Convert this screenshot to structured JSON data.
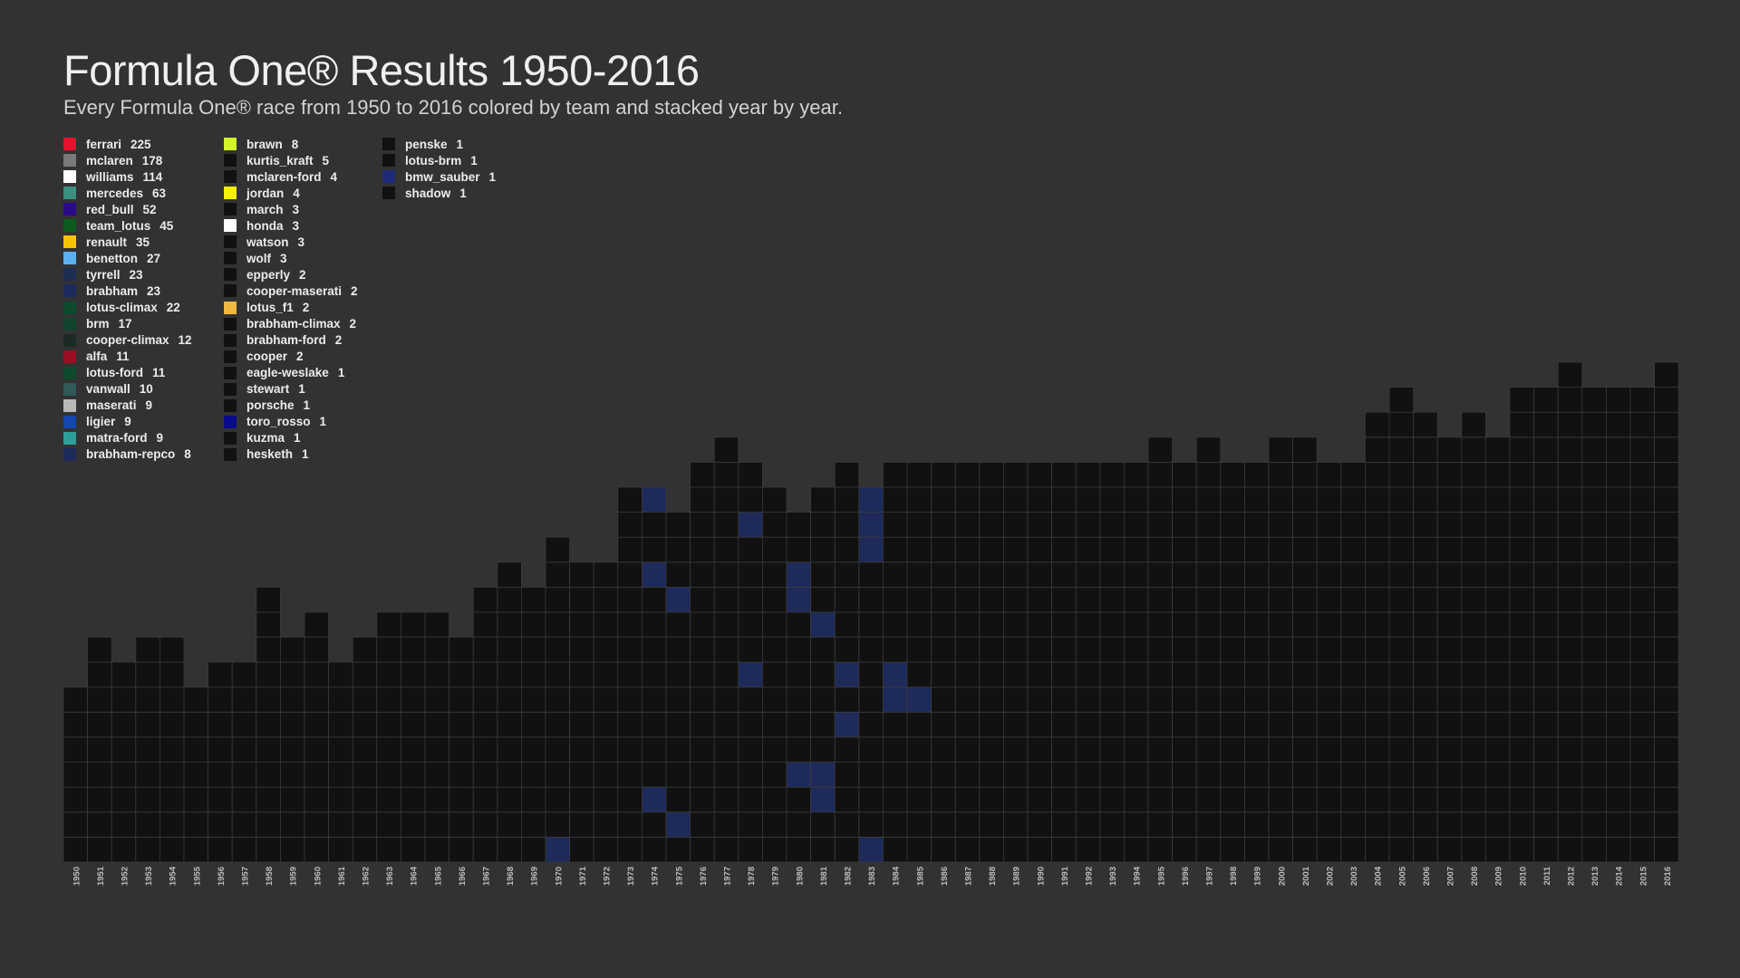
{
  "title": "Formula One® Results 1950-2016",
  "subtitle": "Every Formula One® race from 1950 to 2016 colored by team and stacked year by year.",
  "legend": [
    [
      {
        "team": "ferrari",
        "count": "225",
        "color": "#e8112d"
      },
      {
        "team": "mclaren",
        "count": "178",
        "color": "#7a7a7a"
      },
      {
        "team": "williams",
        "count": "114",
        "color": "#ffffff"
      },
      {
        "team": "mercedes",
        "count": "63",
        "color": "#3a8f80"
      },
      {
        "team": "red_bull",
        "count": "52",
        "color": "#2b0a8a"
      },
      {
        "team": "team_lotus",
        "count": "45",
        "color": "#0b5c1c"
      },
      {
        "team": "renault",
        "count": "35",
        "color": "#f5c400"
      },
      {
        "team": "benetton",
        "count": "27",
        "color": "#5cb0f0"
      },
      {
        "team": "tyrrell",
        "count": "23",
        "color": "#1e2e52"
      },
      {
        "team": "brabham",
        "count": "23",
        "color": "#1c2a5c"
      },
      {
        "team": "lotus-climax",
        "count": "22",
        "color": "#0d4a2e"
      },
      {
        "team": "brm",
        "count": "17",
        "color": "#12442e"
      },
      {
        "team": "cooper-climax",
        "count": "12",
        "color": "#1c2a24"
      },
      {
        "team": "alfa",
        "count": "11",
        "color": "#9a0f24"
      },
      {
        "team": "lotus-ford",
        "count": "11",
        "color": "#0f4a2c"
      },
      {
        "team": "vanwall",
        "count": "10",
        "color": "#2e5a58"
      },
      {
        "team": "maserati",
        "count": "9",
        "color": "#b8b8b8"
      },
      {
        "team": "ligier",
        "count": "9",
        "color": "#1446b0"
      },
      {
        "team": "matra-ford",
        "count": "9",
        "color": "#2e9e9a"
      },
      {
        "team": "brabham-repco",
        "count": "8",
        "color": "#1e2a5a"
      }
    ],
    [
      {
        "team": "brawn",
        "count": "8",
        "color": "#d4f52a"
      },
      {
        "team": "kurtis_kraft",
        "count": "5",
        "color": "#111111"
      },
      {
        "team": "mclaren-ford",
        "count": "4",
        "color": "#111111"
      },
      {
        "team": "jordan",
        "count": "4",
        "color": "#f5f000"
      },
      {
        "team": "march",
        "count": "3",
        "color": "#111111"
      },
      {
        "team": "honda",
        "count": "3",
        "color": "#ffffff"
      },
      {
        "team": "watson",
        "count": "3",
        "color": "#111111"
      },
      {
        "team": "wolf",
        "count": "3",
        "color": "#111111"
      },
      {
        "team": "epperly",
        "count": "2",
        "color": "#111111"
      },
      {
        "team": "cooper-maserati",
        "count": "2",
        "color": "#111111"
      },
      {
        "team": "lotus_f1",
        "count": "2",
        "color": "#f0b840"
      },
      {
        "team": "brabham-climax",
        "count": "2",
        "color": "#111111"
      },
      {
        "team": "brabham-ford",
        "count": "2",
        "color": "#111111"
      },
      {
        "team": "cooper",
        "count": "2",
        "color": "#111111"
      },
      {
        "team": "eagle-weslake",
        "count": "1",
        "color": "#111111"
      },
      {
        "team": "stewart",
        "count": "1",
        "color": "#111111"
      },
      {
        "team": "porsche",
        "count": "1",
        "color": "#111111"
      },
      {
        "team": "toro_rosso",
        "count": "1",
        "color": "#0a0a8c"
      },
      {
        "team": "kuzma",
        "count": "1",
        "color": "#111111"
      },
      {
        "team": "hesketh",
        "count": "1",
        "color": "#111111"
      }
    ],
    [
      {
        "team": "penske",
        "count": "1",
        "color": "#111111"
      },
      {
        "team": "lotus-brm",
        "count": "1",
        "color": "#111111"
      },
      {
        "team": "bmw_sauber",
        "count": "1",
        "color": "#1e2a78"
      },
      {
        "team": "shadow",
        "count": "1",
        "color": "#111111"
      }
    ]
  ],
  "chart_data": {
    "type": "heatmap",
    "x_tick_labels": [
      "1950",
      "1951",
      "1952",
      "1953",
      "1954",
      "1955",
      "1956",
      "1957",
      "1958",
      "1959",
      "1960",
      "1961",
      "1962",
      "1963",
      "1964",
      "1965",
      "1966",
      "1967",
      "1968",
      "1969",
      "1970",
      "1971",
      "1972",
      "1973",
      "1974",
      "1975",
      "1976",
      "1977",
      "1978",
      "1979",
      "1980",
      "1981",
      "1982",
      "1983",
      "1984",
      "1985",
      "1986",
      "1987",
      "1988",
      "1989",
      "1990",
      "1991",
      "1992",
      "1993",
      "1994",
      "1995",
      "1996",
      "1997",
      "1998",
      "1999",
      "2000",
      "2001",
      "2002",
      "2003",
      "2004",
      "2005",
      "2006",
      "2007",
      "2008",
      "2009",
      "2010",
      "2011",
      "2012",
      "2013",
      "2014",
      "2015",
      "2016"
    ],
    "races_per_year": [
      7,
      9,
      8,
      9,
      9,
      7,
      8,
      8,
      11,
      9,
      10,
      8,
      9,
      10,
      10,
      10,
      9,
      11,
      12,
      11,
      13,
      12,
      12,
      15,
      15,
      14,
      16,
      17,
      16,
      15,
      14,
      15,
      16,
      15,
      16,
      16,
      16,
      16,
      16,
      16,
      16,
      16,
      16,
      16,
      16,
      17,
      16,
      17,
      16,
      16,
      17,
      17,
      16,
      16,
      18,
      19,
      18,
      17,
      18,
      17,
      19,
      19,
      20,
      19,
      19,
      19,
      20
    ],
    "default_cell_color": "#111111",
    "grid_color": "#3a3a3a",
    "highlight_color": "#1e2a5a",
    "highlight_cells": [
      {
        "year": "1970",
        "race": 1
      },
      {
        "year": "1974",
        "race": 3
      },
      {
        "year": "1974",
        "race": 12
      },
      {
        "year": "1974",
        "race": 15
      },
      {
        "year": "1975",
        "race": 2
      },
      {
        "year": "1975",
        "race": 11
      },
      {
        "year": "1978",
        "race": 8
      },
      {
        "year": "1978",
        "race": 14
      },
      {
        "year": "1980",
        "race": 4
      },
      {
        "year": "1980",
        "race": 11
      },
      {
        "year": "1980",
        "race": 12
      },
      {
        "year": "1981",
        "race": 3
      },
      {
        "year": "1981",
        "race": 4
      },
      {
        "year": "1981",
        "race": 10
      },
      {
        "year": "1982",
        "race": 6
      },
      {
        "year": "1982",
        "race": 8
      },
      {
        "year": "1983",
        "race": 1
      },
      {
        "year": "1983",
        "race": 13
      },
      {
        "year": "1983",
        "race": 14
      },
      {
        "year": "1983",
        "race": 15
      },
      {
        "year": "1984",
        "race": 7
      },
      {
        "year": "1984",
        "race": 8
      },
      {
        "year": "1985",
        "race": 7
      }
    ]
  }
}
